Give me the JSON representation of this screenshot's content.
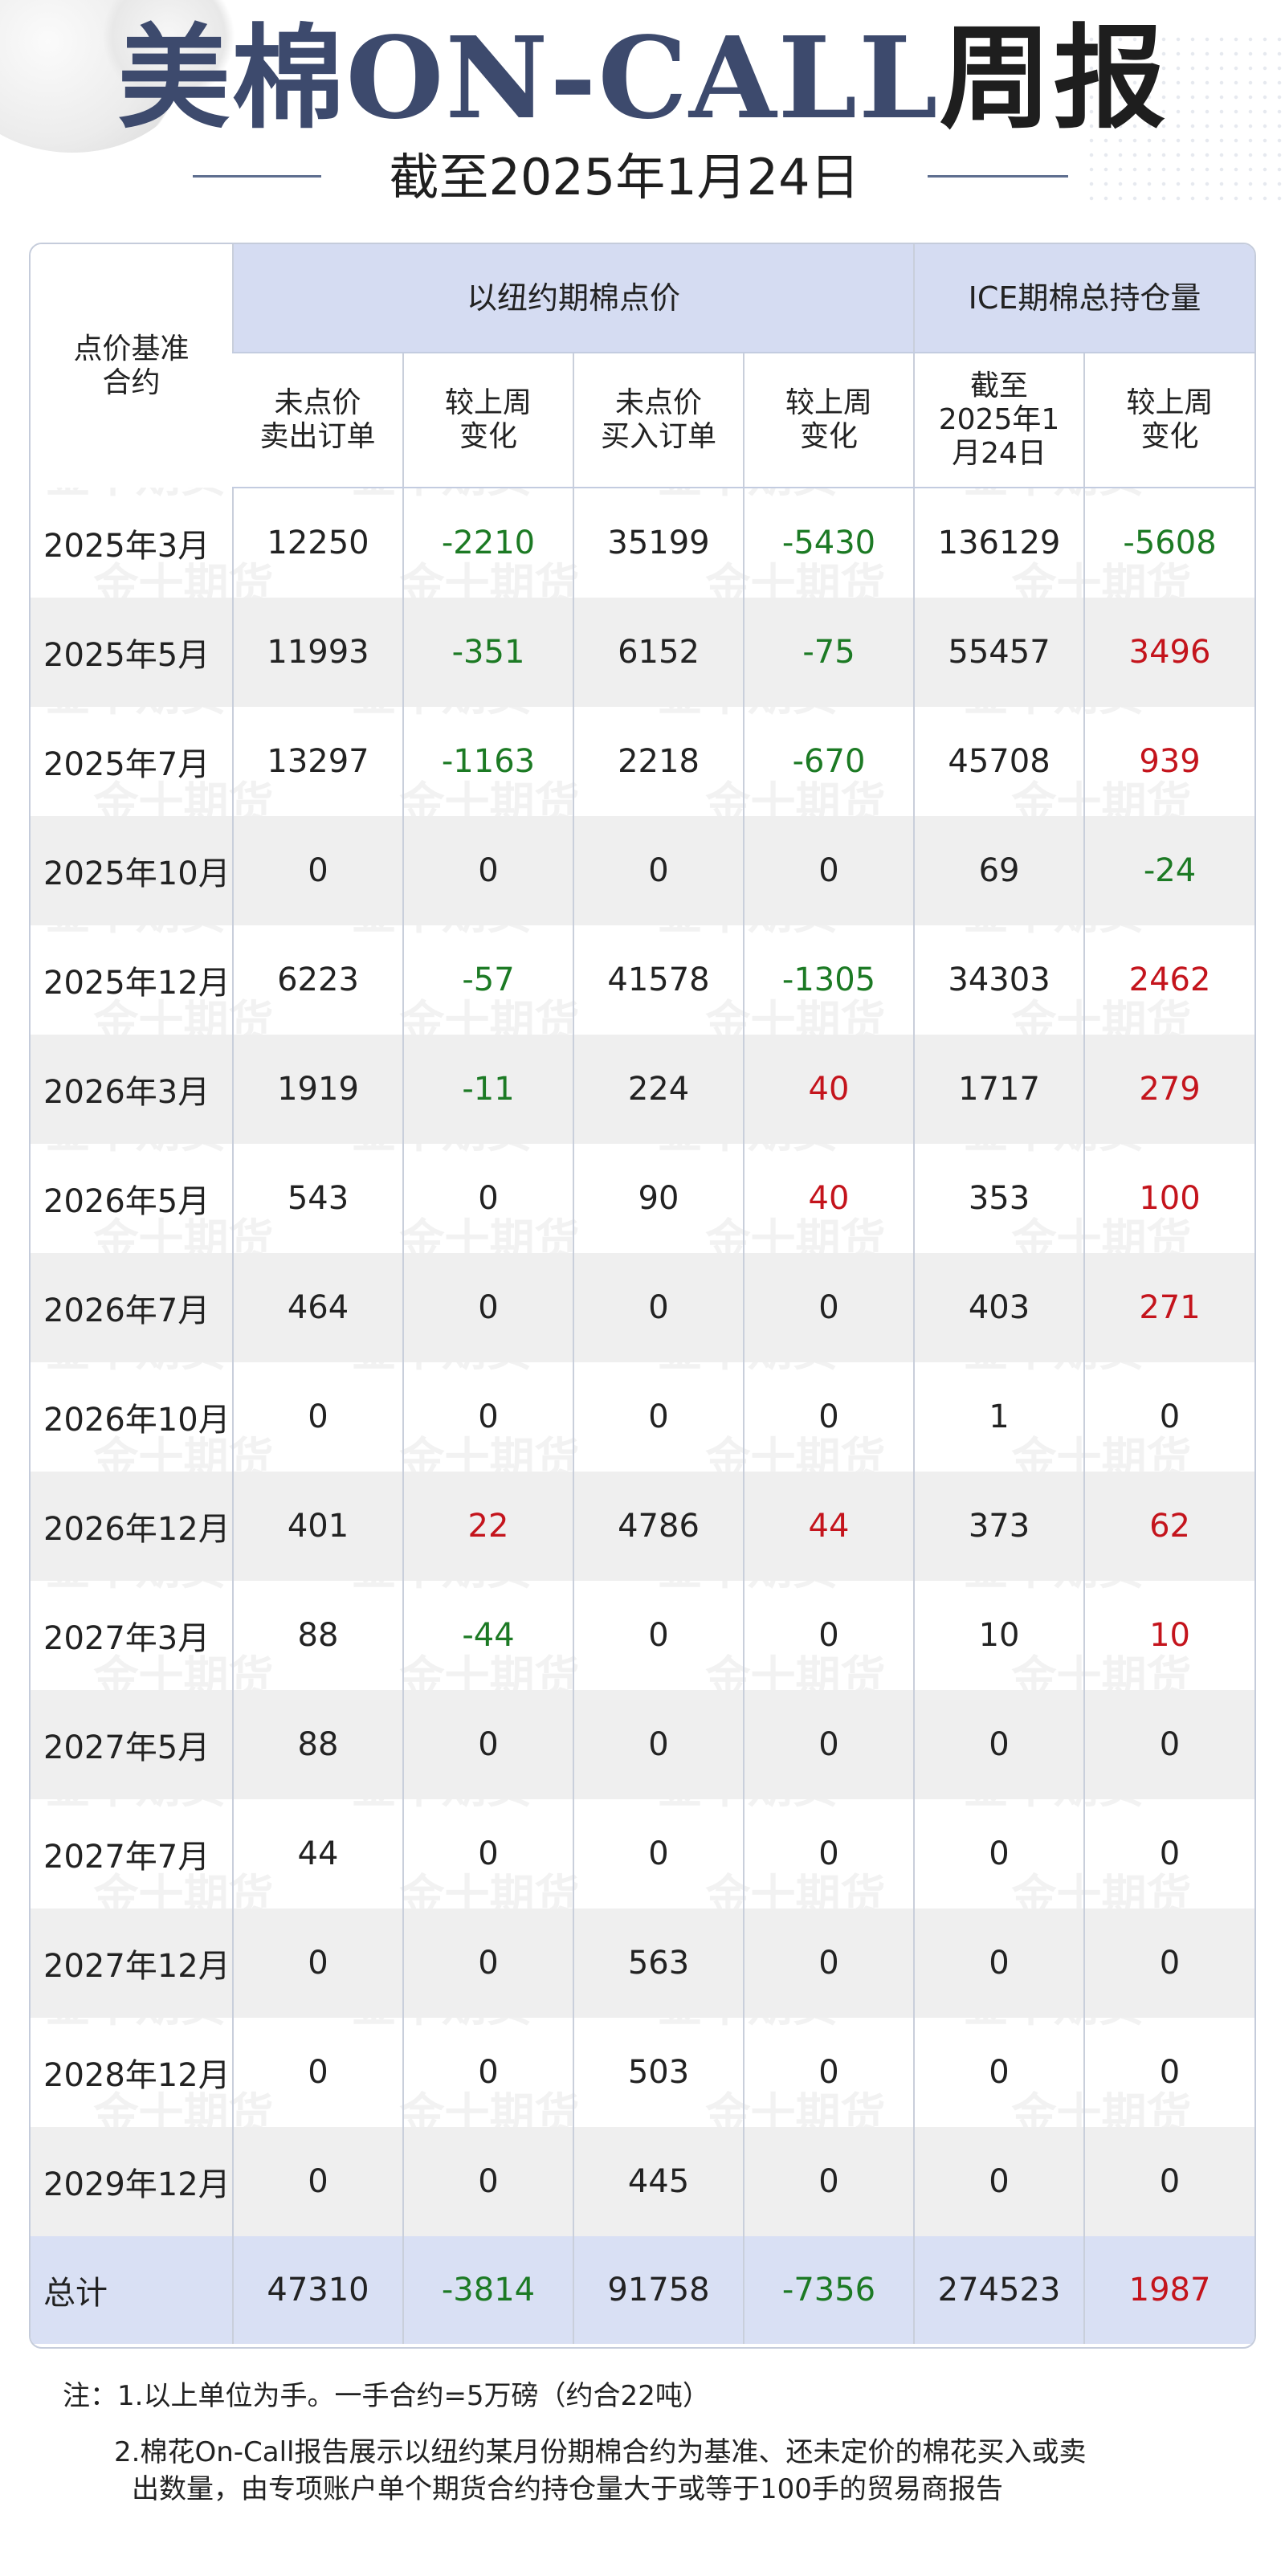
{
  "header": {
    "title_part1": "美棉ON-CALL",
    "title_part2": "周报",
    "subtitle": "截至2025年1月24日",
    "watermark_text": "金十期货"
  },
  "table": {
    "corner_label": "点价基准\n合约",
    "group1_label": "以纽约期棉点价",
    "group2_label": "ICE期棉总持仓量",
    "sub_headers": [
      "未点价\n卖出订单",
      "较上周\n变化",
      "未点价\n买入订单",
      "较上周\n变化",
      "截至\n2025年1\n月24日",
      "较上周\n变化"
    ],
    "rows": [
      {
        "contract": "2025年3月",
        "values": [
          "12250",
          "-2210",
          "35199",
          "-5430",
          "136129",
          "-5608"
        ],
        "signs": [
          "",
          "neg",
          "",
          "neg",
          "",
          "neg"
        ]
      },
      {
        "contract": "2025年5月",
        "values": [
          "11993",
          "-351",
          "6152",
          "-75",
          "55457",
          "3496"
        ],
        "signs": [
          "",
          "neg",
          "",
          "neg",
          "",
          "pos"
        ]
      },
      {
        "contract": "2025年7月",
        "values": [
          "13297",
          "-1163",
          "2218",
          "-670",
          "45708",
          "939"
        ],
        "signs": [
          "",
          "neg",
          "",
          "neg",
          "",
          "pos"
        ]
      },
      {
        "contract": "2025年10月",
        "values": [
          "0",
          "0",
          "0",
          "0",
          "69",
          "-24"
        ],
        "signs": [
          "",
          "",
          "",
          "",
          "",
          "neg"
        ]
      },
      {
        "contract": "2025年12月",
        "values": [
          "6223",
          "-57",
          "41578",
          "-1305",
          "34303",
          "2462"
        ],
        "signs": [
          "",
          "neg",
          "",
          "neg",
          "",
          "pos"
        ]
      },
      {
        "contract": "2026年3月",
        "values": [
          "1919",
          "-11",
          "224",
          "40",
          "1717",
          "279"
        ],
        "signs": [
          "",
          "neg",
          "",
          "pos",
          "",
          "pos"
        ]
      },
      {
        "contract": "2026年5月",
        "values": [
          "543",
          "0",
          "90",
          "40",
          "353",
          "100"
        ],
        "signs": [
          "",
          "",
          "",
          "pos",
          "",
          "pos"
        ]
      },
      {
        "contract": "2026年7月",
        "values": [
          "464",
          "0",
          "0",
          "0",
          "403",
          "271"
        ],
        "signs": [
          "",
          "",
          "",
          "",
          "",
          "pos"
        ]
      },
      {
        "contract": "2026年10月",
        "values": [
          "0",
          "0",
          "0",
          "0",
          "1",
          "0"
        ],
        "signs": [
          "",
          "",
          "",
          "",
          "",
          ""
        ]
      },
      {
        "contract": "2026年12月",
        "values": [
          "401",
          "22",
          "4786",
          "44",
          "373",
          "62"
        ],
        "signs": [
          "",
          "pos",
          "",
          "pos",
          "",
          "pos"
        ]
      },
      {
        "contract": "2027年3月",
        "values": [
          "88",
          "-44",
          "0",
          "0",
          "10",
          "10"
        ],
        "signs": [
          "",
          "neg",
          "",
          "",
          "",
          "pos"
        ]
      },
      {
        "contract": "2027年5月",
        "values": [
          "88",
          "0",
          "0",
          "0",
          "0",
          "0"
        ],
        "signs": [
          "",
          "",
          "",
          "",
          "",
          ""
        ]
      },
      {
        "contract": "2027年7月",
        "values": [
          "44",
          "0",
          "0",
          "0",
          "0",
          "0"
        ],
        "signs": [
          "",
          "",
          "",
          "",
          "",
          ""
        ]
      },
      {
        "contract": "2027年12月",
        "values": [
          "0",
          "0",
          "563",
          "0",
          "0",
          "0"
        ],
        "signs": [
          "",
          "",
          "",
          "",
          "",
          ""
        ]
      },
      {
        "contract": "2028年12月",
        "values": [
          "0",
          "0",
          "503",
          "0",
          "0",
          "0"
        ],
        "signs": [
          "",
          "",
          "",
          "",
          "",
          ""
        ]
      },
      {
        "contract": "2029年12月",
        "values": [
          "0",
          "0",
          "445",
          "0",
          "0",
          "0"
        ],
        "signs": [
          "",
          "",
          "",
          "",
          "",
          ""
        ]
      }
    ],
    "total": {
      "contract": "总计",
      "values": [
        "47310",
        "-3814",
        "91758",
        "-7356",
        "274523",
        "1987"
      ],
      "signs": [
        "",
        "neg",
        "",
        "neg",
        "",
        "pos"
      ]
    }
  },
  "notes": {
    "line1": "注：1.以上单位为手。一手合约=5万磅（约合22吨）",
    "line2": "2.棉花On-Call报告展示以纽约某月份期棉合约为基准、还未定价的棉花买入或卖",
    "line3": "出数量，由专项账户单个期货合约持仓量大于或等于100手的贸易商报告"
  },
  "colors": {
    "positive_change": "#c4141c",
    "negative_change": "#1c7a24",
    "header_band": "#d5dcf2",
    "title_blue": "#3d4a6d"
  }
}
